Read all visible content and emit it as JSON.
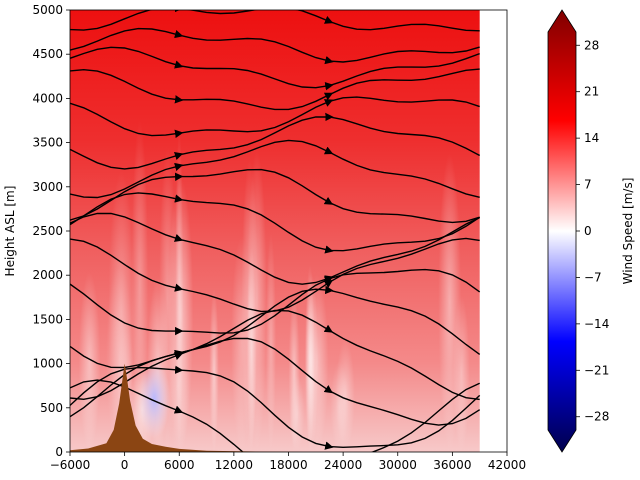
{
  "chart_data": {
    "type": "heatmap",
    "subtype": "filled-contour wind cross-section with streamlines and terrain",
    "title": "",
    "xlabel": "",
    "ylabel": "Height ASL [m]",
    "xlim": [
      -6000,
      42000
    ],
    "ylim": [
      0,
      5000
    ],
    "x_ticks": [
      "−6000",
      "0",
      "6000",
      "12000",
      "18000",
      "24000",
      "30000",
      "36000",
      "42000"
    ],
    "y_ticks": [
      "0",
      "500",
      "1000",
      "1500",
      "2000",
      "2500",
      "3000",
      "3500",
      "4000",
      "4500",
      "5000"
    ],
    "data_extent_x": [
      -6000,
      39000
    ],
    "colorbar": {
      "label": "Wind Speed [m/s]",
      "range": [
        -30,
        30
      ],
      "extend": "both",
      "colormap": "seismic",
      "ticks": [
        "−28",
        "−21",
        "−14",
        "−7",
        "0",
        "7",
        "14",
        "21",
        "28"
      ]
    },
    "terrain": {
      "color": "#8b4513",
      "profile_x": [
        -6000,
        -4000,
        -2000,
        -1200,
        -600,
        -200,
        0,
        200,
        600,
        1200,
        2000,
        3000,
        4500,
        6000,
        9000,
        15000,
        20000
      ],
      "profile_h": [
        20,
        40,
        100,
        250,
        550,
        850,
        1000,
        880,
        580,
        300,
        150,
        90,
        60,
        35,
        15,
        5,
        0
      ]
    },
    "wind_field_bands": [
      {
        "height_range": [
          4000,
          5000
        ],
        "speed": 17
      },
      {
        "height_range": [
          3000,
          4000
        ],
        "speed": 13
      },
      {
        "height_range": [
          2000,
          3000
        ],
        "speed": 9
      },
      {
        "height_range": [
          1000,
          2000
        ],
        "speed": 7
      },
      {
        "height_range": [
          0,
          1000
        ],
        "speed": 4
      }
    ],
    "negative_region": {
      "x_range": [
        1500,
        5000
      ],
      "height_range": [
        150,
        1050
      ],
      "speed": -6
    }
  }
}
